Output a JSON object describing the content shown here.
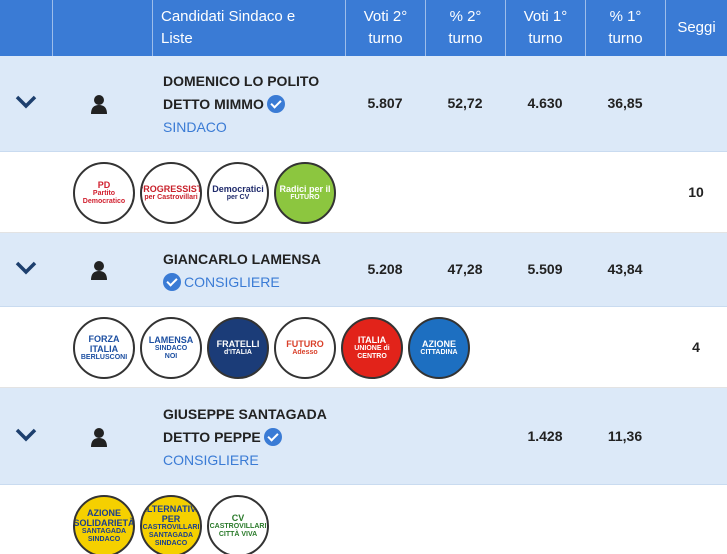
{
  "header": {
    "columns": [
      "Candidati Sindaco e Liste",
      "Voti 2° turno",
      "% 2° turno",
      "Voti 1° turno",
      "% 1° turno",
      "Seggi"
    ]
  },
  "rows": [
    {
      "name": [
        "DOMENICO LO POLITO",
        "DETTO MIMMO"
      ],
      "role": "SINDACO",
      "voti_2": "5.807",
      "perc_2": "52,72",
      "voti_1": "4.630",
      "perc_1": "36,85",
      "seggi": "10",
      "logos": [
        {
          "color": "#ffffff",
          "ink": "#d1202f",
          "text": [
            "PD",
            "Partito Democratico"
          ]
        },
        {
          "color": "#ffffff",
          "ink": "#c8202a",
          "text": [
            "PROGRESSISTI",
            "per Castrovillari"
          ]
        },
        {
          "color": "#ffffff",
          "ink": "#1f2a6b",
          "text": [
            "Democratici",
            "per CV"
          ]
        },
        {
          "color": "#8cc63f",
          "ink": "#ffffff",
          "text": [
            "Radici per il",
            "FUTURO"
          ]
        }
      ]
    },
    {
      "name": [
        "GIANCARLO LAMENSA"
      ],
      "role": "CONSIGLIERE",
      "voti_2": "5.208",
      "perc_2": "47,28",
      "voti_1": "5.509",
      "perc_1": "43,84",
      "seggi": "4",
      "logos": [
        {
          "color": "#ffffff",
          "ink": "#1c4fa1",
          "text": [
            "FORZA ITALIA",
            "BERLUSCONI"
          ]
        },
        {
          "color": "#ffffff",
          "ink": "#1c4fa1",
          "text": [
            "LAMENSA",
            "SINDACO",
            "NOI"
          ]
        },
        {
          "color": "#1b3c78",
          "ink": "#ffffff",
          "text": [
            "FRATELLI",
            "d'ITALIA"
          ]
        },
        {
          "color": "#ffffff",
          "ink": "#d9402a",
          "text": [
            "FUTURO",
            "Adesso"
          ]
        },
        {
          "color": "#e2231a",
          "ink": "#ffffff",
          "text": [
            "ITALIA",
            "UNIONE di CENTRO"
          ]
        },
        {
          "color": "#1d6fc1",
          "ink": "#ffffff",
          "text": [
            "AZIONE",
            "CITTADINA"
          ]
        }
      ]
    },
    {
      "name": [
        "GIUSEPPE SANTAGADA",
        "DETTO PEPPE"
      ],
      "role": "CONSIGLIERE",
      "voti_2": "",
      "perc_2": "",
      "voti_1": "1.428",
      "perc_1": "11,36",
      "seggi": "",
      "logos": [
        {
          "color": "#f5d000",
          "ink": "#1a3f8f",
          "text": [
            "AZIONE SOLIDARIETÀ",
            "SANTAGADA SINDACO"
          ]
        },
        {
          "color": "#f5d000",
          "ink": "#1a3f8f",
          "text": [
            "ALTERNATIVA PER",
            "CASTROVILLARI",
            "SANTAGADA",
            "SINDACO"
          ]
        },
        {
          "color": "#ffffff",
          "ink": "#2a7a2a",
          "text": [
            "CV",
            "CASTROVILLARI",
            "CITTÀ VIVA"
          ]
        }
      ]
    }
  ]
}
